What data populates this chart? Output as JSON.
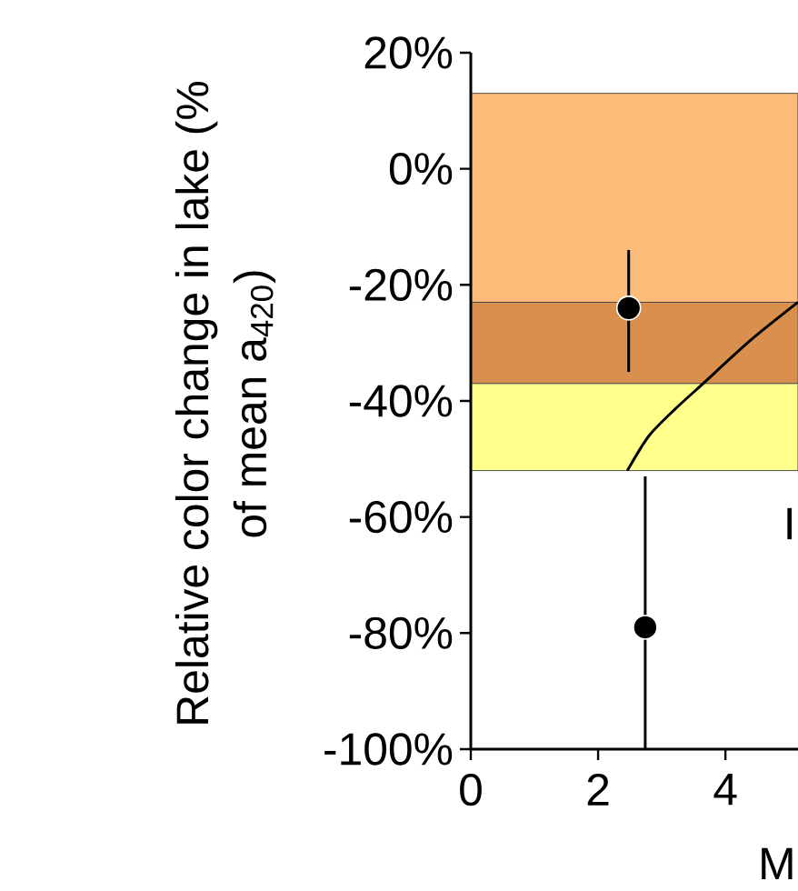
{
  "chart_data": {
    "type": "scatter",
    "xlabel": "M",
    "ylabel": "Relative color change in lake (% of mean a$_{420}$)",
    "annotations": [
      "I"
    ],
    "xlim": [
      0,
      5.14
    ],
    "ylim": [
      -100,
      20
    ],
    "xticks": [
      0,
      2,
      4
    ],
    "yticks": [
      {
        "value": 20,
        "label": "20%"
      },
      {
        "value": 0,
        "label": "0%"
      },
      {
        "value": -20,
        "label": "-20%"
      },
      {
        "value": -40,
        "label": "-40%"
      },
      {
        "value": -60,
        "label": "-60%"
      },
      {
        "value": -80,
        "label": "-80%"
      },
      {
        "value": -100,
        "label": "-100%"
      }
    ],
    "bands": [
      {
        "axis": "y",
        "from": -23,
        "to": 13,
        "color": "#fdbb7a"
      },
      {
        "axis": "y",
        "from": -37,
        "to": -23,
        "color": "#d9904f"
      },
      {
        "axis": "y",
        "from": -52,
        "to": -37,
        "color": "#ffff8c"
      }
    ],
    "series": [
      {
        "type": "line",
        "color": "#000000",
        "x": [
          2.46,
          2.8,
          3.2,
          3.65,
          4.4,
          5.14
        ],
        "values": [
          -52,
          -46,
          -41.5,
          -37,
          -29.5,
          -23
        ]
      },
      {
        "color": "#000000",
        "x": [
          2.48,
          2.74
        ],
        "values": [
          -24,
          -79
        ],
        "errors": [
          [
            -35,
            -14
          ],
          [
            -100,
            -53
          ]
        ]
      }
    ],
    "grid": false
  }
}
